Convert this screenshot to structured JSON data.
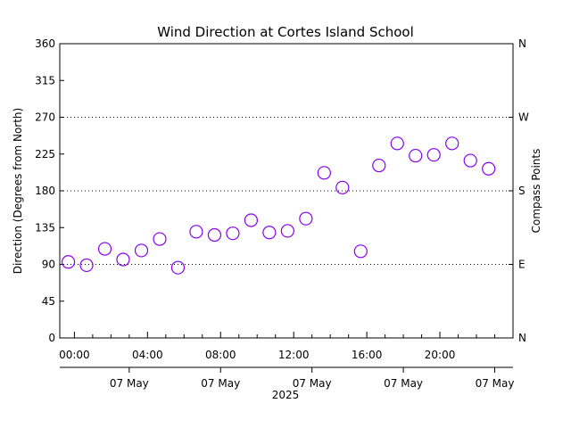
{
  "chart_data": {
    "type": "scatter",
    "title": "Wind Direction at Cortes Island School",
    "ylabel": "Direction (Degrees from North)",
    "ylabel_right": "Compass Points",
    "ylim": [
      0,
      360
    ],
    "xlim": [
      "2025-05-06T23:12",
      "2025-05-08T00:00"
    ],
    "y_ticks": [
      "0",
      "45",
      "90",
      "135",
      "180",
      "225",
      "270",
      "315",
      "360"
    ],
    "y_tick_values": [
      0,
      45,
      90,
      135,
      180,
      225,
      270,
      315,
      360
    ],
    "right_ticks": [
      {
        "value": 0,
        "label": "N"
      },
      {
        "value": 90,
        "label": "E"
      },
      {
        "value": 180,
        "label": "S"
      },
      {
        "value": 270,
        "label": "W"
      },
      {
        "value": 360,
        "label": "N"
      }
    ],
    "gridlines": [
      90,
      180,
      270
    ],
    "x_ticks": [
      {
        "time": "2025-05-07T00:00",
        "label": "00:00"
      },
      {
        "time": "2025-05-07T04:00",
        "label": "04:00"
      },
      {
        "time": "2025-05-07T08:00",
        "label": "08:00"
      },
      {
        "time": "2025-05-07T12:00",
        "label": "12:00"
      },
      {
        "time": "2025-05-07T16:00",
        "label": "16:00"
      },
      {
        "time": "2025-05-07T20:00",
        "label": "20:00"
      }
    ],
    "date_labels": [
      {
        "time": "2025-05-07T03:00",
        "label": "07 May"
      },
      {
        "time": "2025-05-07T08:00",
        "label": "07 May"
      },
      {
        "time": "2025-05-07T13:00",
        "label": "07 May"
      },
      {
        "time": "2025-05-07T18:00",
        "label": "07 May"
      },
      {
        "time": "2025-05-07T23:00",
        "label": "07 May"
      }
    ],
    "year_label": "2025",
    "marker_color": "#8800ee",
    "grid": true,
    "points": [
      {
        "time": "2025-05-06T23:40",
        "value": 93
      },
      {
        "time": "2025-05-07T00:40",
        "value": 89
      },
      {
        "time": "2025-05-07T01:40",
        "value": 109
      },
      {
        "time": "2025-05-07T02:40",
        "value": 96
      },
      {
        "time": "2025-05-07T03:40",
        "value": 107
      },
      {
        "time": "2025-05-07T04:40",
        "value": 121
      },
      {
        "time": "2025-05-07T05:40",
        "value": 86
      },
      {
        "time": "2025-05-07T06:40",
        "value": 130
      },
      {
        "time": "2025-05-07T07:40",
        "value": 126
      },
      {
        "time": "2025-05-07T08:40",
        "value": 128
      },
      {
        "time": "2025-05-07T09:40",
        "value": 144
      },
      {
        "time": "2025-05-07T10:40",
        "value": 129
      },
      {
        "time": "2025-05-07T11:40",
        "value": 131
      },
      {
        "time": "2025-05-07T12:40",
        "value": 146
      },
      {
        "time": "2025-05-07T13:40",
        "value": 202
      },
      {
        "time": "2025-05-07T14:40",
        "value": 184
      },
      {
        "time": "2025-05-07T15:40",
        "value": 106
      },
      {
        "time": "2025-05-07T16:40",
        "value": 211
      },
      {
        "time": "2025-05-07T17:40",
        "value": 238
      },
      {
        "time": "2025-05-07T18:40",
        "value": 223
      },
      {
        "time": "2025-05-07T19:40",
        "value": 224
      },
      {
        "time": "2025-05-07T20:40",
        "value": 238
      },
      {
        "time": "2025-05-07T21:40",
        "value": 217
      },
      {
        "time": "2025-05-07T22:40",
        "value": 207
      }
    ]
  }
}
